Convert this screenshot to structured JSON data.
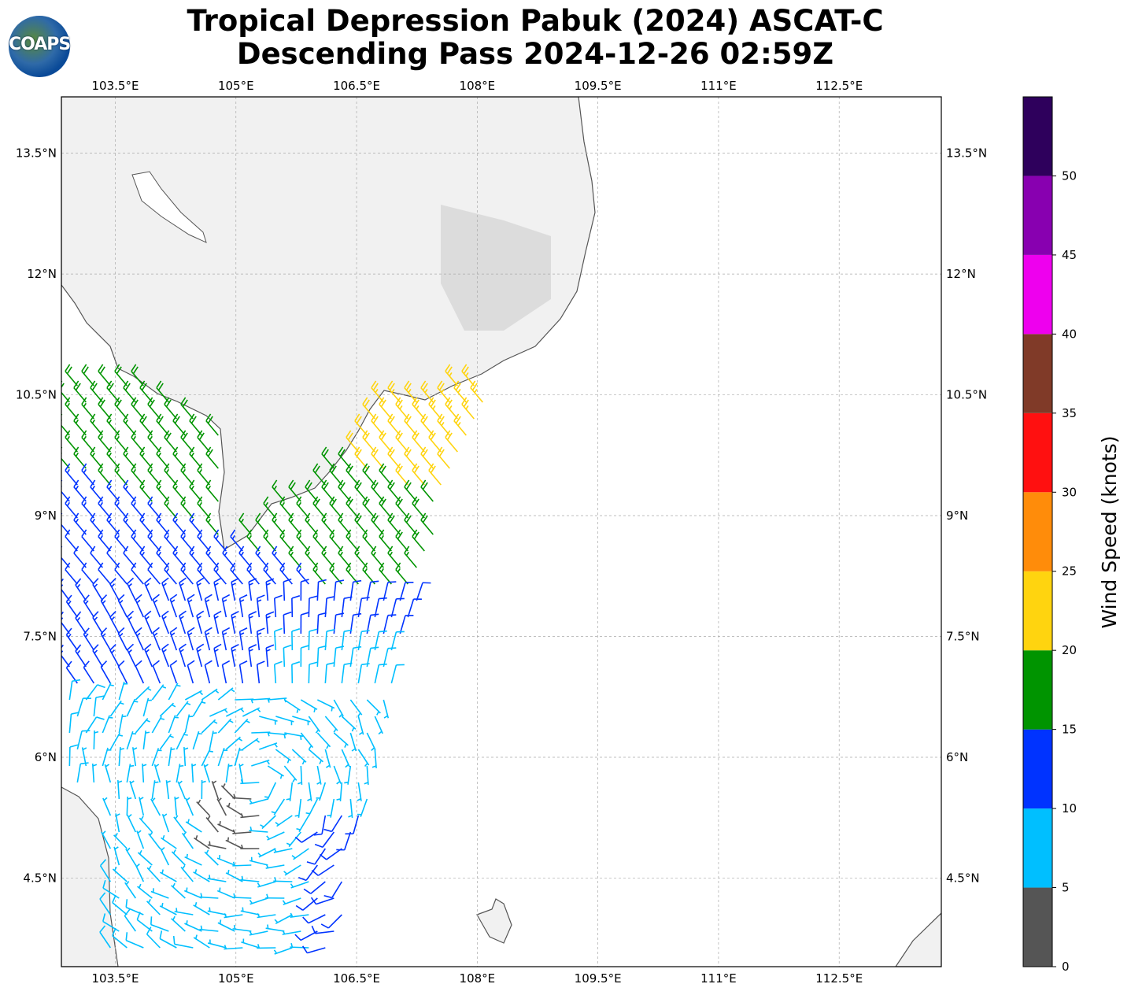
{
  "title": {
    "line1": "Tropical Depression Pabuk (2024) ASCAT-C",
    "line2": "Descending Pass 2024-12-26 02:59Z"
  },
  "logo": {
    "text": "COAPS"
  },
  "chart_data": {
    "type": "wind-barb-map",
    "lon_ticks": [
      "103.5°E",
      "105°E",
      "106.5°E",
      "108°E",
      "109.5°E",
      "111°E",
      "112.5°E"
    ],
    "lon_values": [
      103.5,
      105,
      106.5,
      108,
      109.5,
      111,
      112.5
    ],
    "lat_ticks": [
      "13.5°N",
      "12°N",
      "10.5°N",
      "9°N",
      "7.5°N",
      "6°N",
      "4.5°N"
    ],
    "lat_values": [
      13.5,
      12,
      10.5,
      9,
      7.5,
      6,
      4.5
    ],
    "lon_range": [
      102.83,
      113.77
    ],
    "lat_range": [
      3.4,
      14.2
    ],
    "grid": true,
    "colorbar": {
      "label": "Wind Speed (knots)",
      "ticks": [
        "0",
        "5",
        "10",
        "15",
        "20",
        "25",
        "30",
        "35",
        "40",
        "45",
        "50"
      ],
      "range": [
        0,
        55
      ],
      "bins": [
        {
          "min": 0,
          "max": 5,
          "color": "#555555"
        },
        {
          "min": 5,
          "max": 10,
          "color": "#00bfff"
        },
        {
          "min": 10,
          "max": 15,
          "color": "#0033ff"
        },
        {
          "min": 15,
          "max": 20,
          "color": "#009400"
        },
        {
          "min": 20,
          "max": 25,
          "color": "#ffd40f"
        },
        {
          "min": 25,
          "max": 30,
          "color": "#ff8c0a"
        },
        {
          "min": 30,
          "max": 35,
          "color": "#ff1010"
        },
        {
          "min": 35,
          "max": 40,
          "color": "#803a28"
        },
        {
          "min": 40,
          "max": 45,
          "color": "#ee00ee"
        },
        {
          "min": 45,
          "max": 50,
          "color": "#8800b0"
        },
        {
          "min": 50,
          "max": 55,
          "color": "#2e005c"
        }
      ]
    }
  }
}
